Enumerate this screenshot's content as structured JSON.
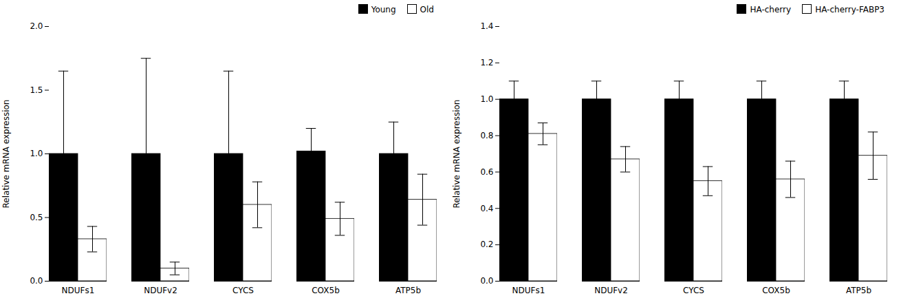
{
  "chart_data": [
    {
      "type": "bar",
      "categories": [
        "NDUFs1",
        "NDUFv2",
        "CYCS",
        "COX5b",
        "ATP5b"
      ],
      "ylabel": "Relative mRNA expression",
      "ylim": [
        0,
        2.0
      ],
      "yticks": [
        {
          "value": 0,
          "label": "0.0"
        },
        0.5,
        {
          "value": 1.0,
          "label": "1.0"
        },
        1.5,
        {
          "value": 2.0,
          "label": "2.0"
        }
      ],
      "legend": "upper right",
      "series": [
        {
          "name": "Young",
          "color": "#000000",
          "values": [
            1.0,
            1.0,
            1.0,
            1.02,
            1.0
          ],
          "errors": [
            0.65,
            0.75,
            0.65,
            0.18,
            0.25
          ]
        },
        {
          "name": "Old",
          "color": "#ffffff",
          "values": [
            0.33,
            0.1,
            0.6,
            0.49,
            0.64
          ],
          "errors": [
            0.1,
            0.05,
            0.18,
            0.13,
            0.2
          ]
        }
      ]
    },
    {
      "type": "bar",
      "categories": [
        "NDUFs1",
        "NDUFv2",
        "CYCS",
        "COX5b",
        "ATP5b"
      ],
      "ylabel": "Relative mRNA expression",
      "ylim": [
        0,
        1.4
      ],
      "yticks": [
        {
          "value": 0,
          "label": "0.0"
        },
        0.2,
        0.4,
        0.6,
        0.8,
        {
          "value": 1.0,
          "label": "1.0"
        },
        1.2,
        1.4
      ],
      "legend": "upper right",
      "series": [
        {
          "name": "HA-cherry",
          "color": "#000000",
          "values": [
            1.0,
            1.0,
            1.0,
            1.0,
            1.0
          ],
          "errors": [
            0.1,
            0.1,
            0.1,
            0.1,
            0.1
          ]
        },
        {
          "name": "HA-cherry-FABP3",
          "color": "#ffffff",
          "values": [
            0.81,
            0.67,
            0.55,
            0.56,
            0.69
          ],
          "errors": [
            0.06,
            0.07,
            0.08,
            0.1,
            0.13
          ]
        }
      ]
    }
  ]
}
